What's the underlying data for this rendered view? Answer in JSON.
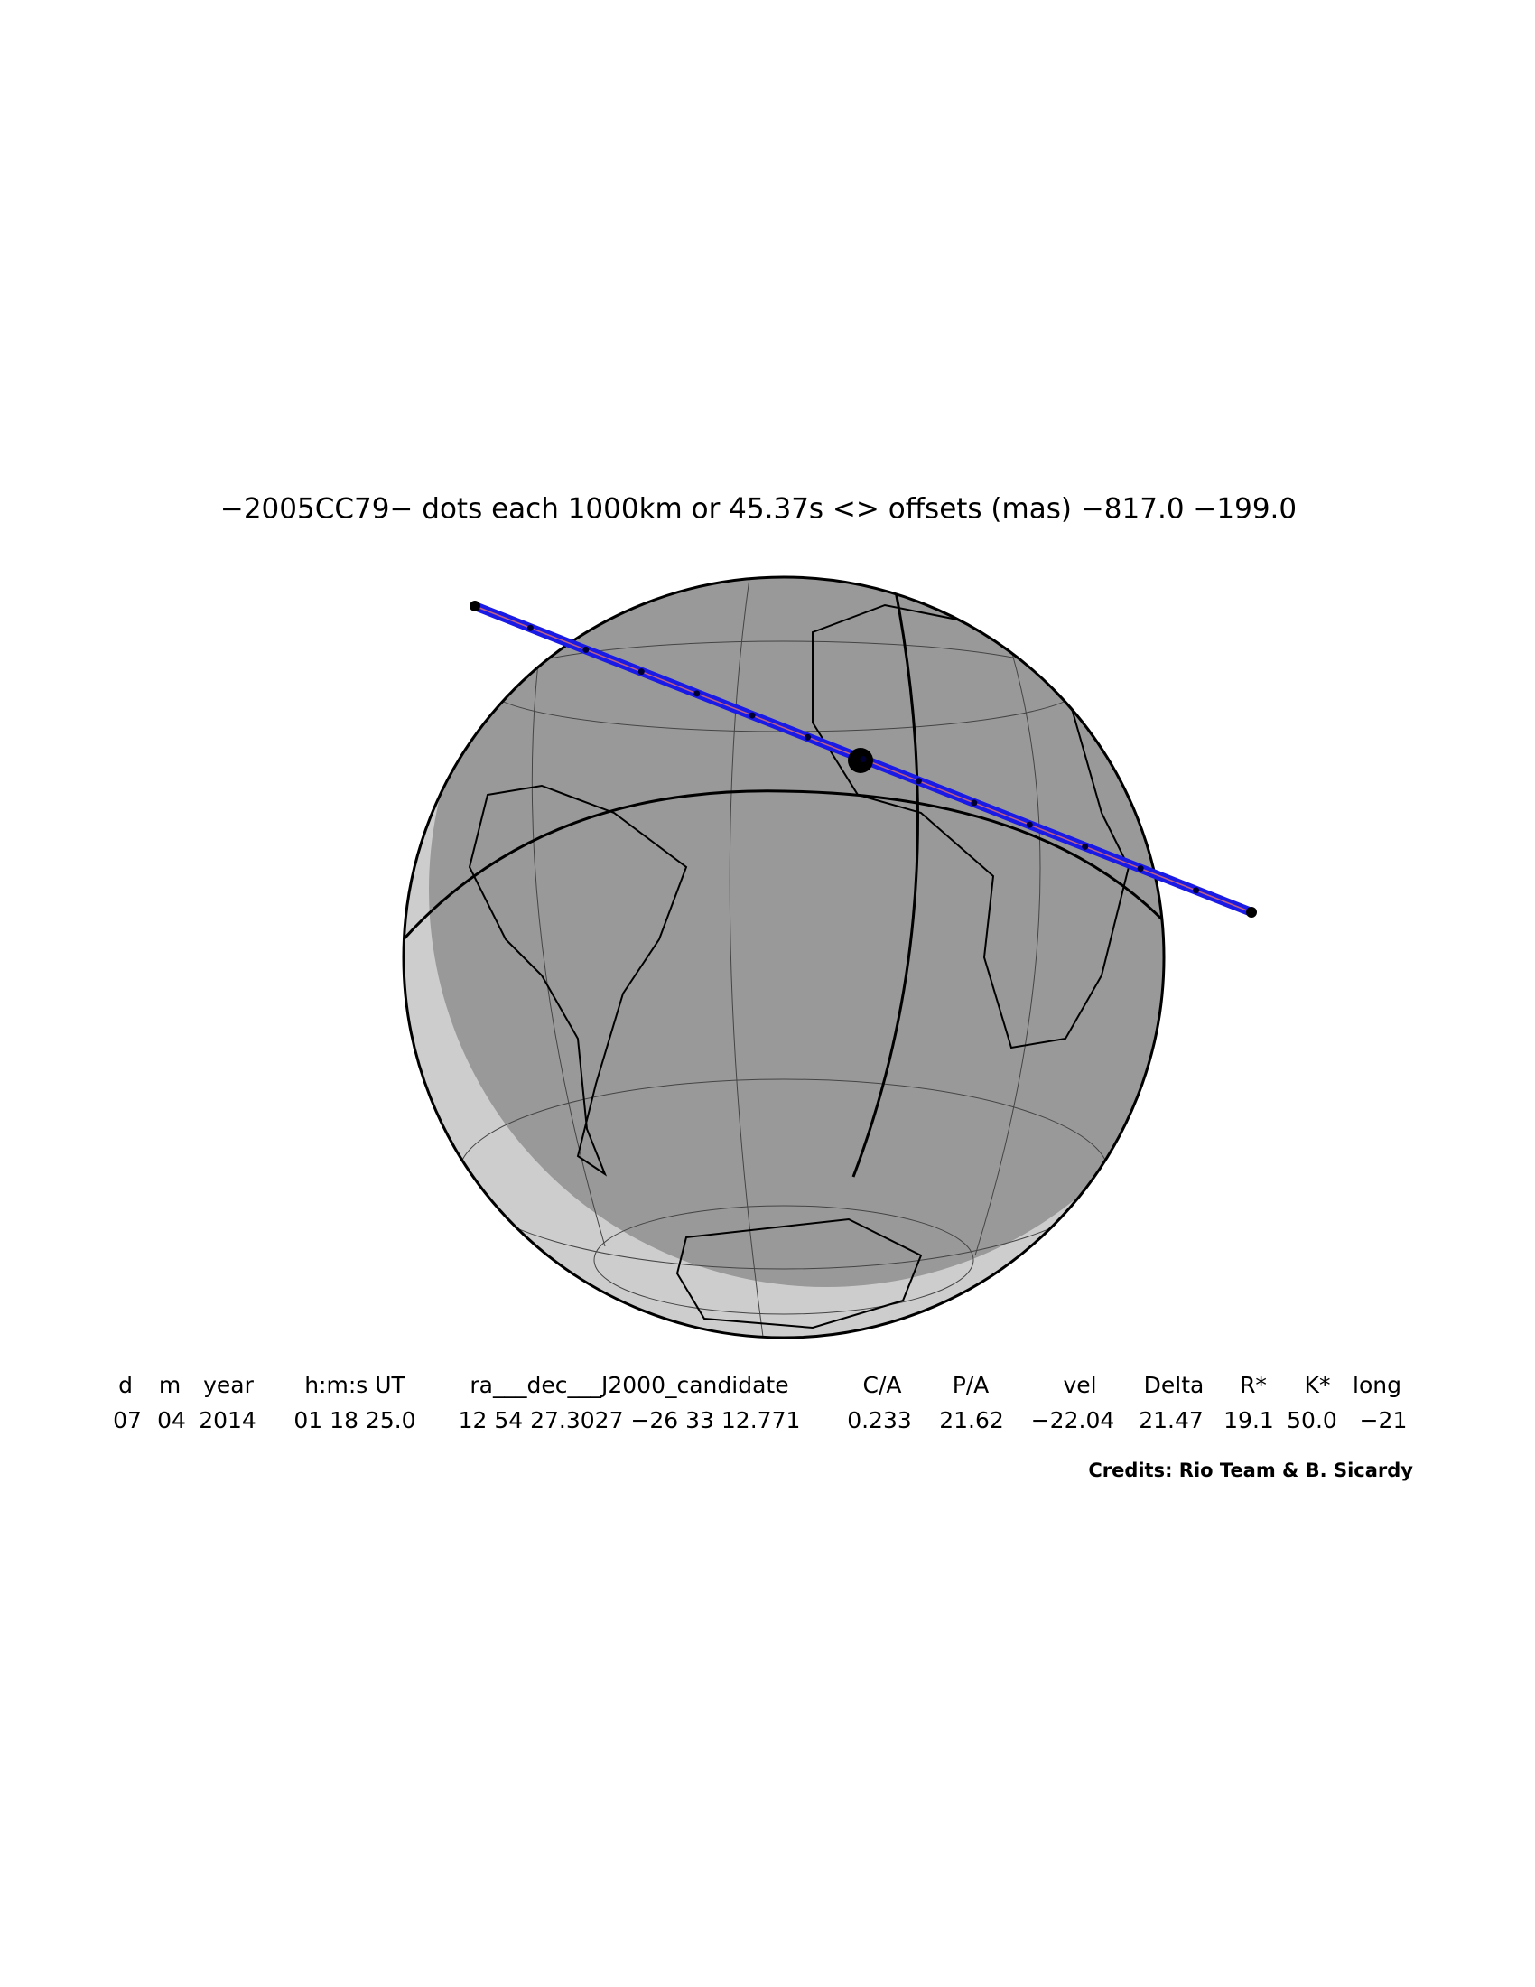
{
  "title": "−2005CC79− dots each 1000km or 45.37s <> offsets (mas) −817.0 −199.0",
  "table": {
    "header": [
      "d",
      "m",
      "year",
      "h:m:s UT",
      "ra___dec___J2000_candidate",
      "C/A",
      "P/A",
      "vel",
      "Delta",
      "R*",
      "K*",
      "long"
    ],
    "rows": [
      [
        "07",
        "04",
        "2014",
        "01 18 25.0",
        "12 54 27.3027 −26 33 12.771",
        "0.233",
        "21.62",
        "−22.04",
        "21.47",
        "19.1",
        "50.0",
        "−21"
      ]
    ]
  },
  "credits": "Credits: Rio Team & B. Sicardy"
}
